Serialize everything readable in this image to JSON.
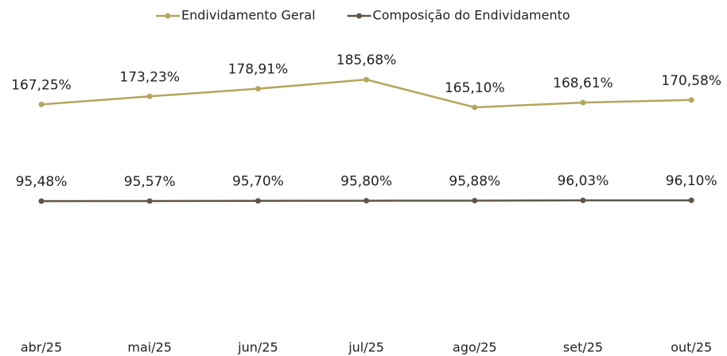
{
  "chart_data": {
    "type": "line",
    "categories": [
      "abr/25",
      "mai/25",
      "jun/25",
      "jul/25",
      "ago/25",
      "set/25",
      "out/25"
    ],
    "series": [
      {
        "name": "Endividamento Geral",
        "color": "#b5a55e",
        "values": [
          167.25,
          173.23,
          178.91,
          185.68,
          165.1,
          168.61,
          170.58
        ],
        "value_labels": [
          "167,25%",
          "173,23%",
          "178,91%",
          "185,68%",
          "165,10%",
          "168,61%",
          "170,58%"
        ]
      },
      {
        "name": "Composição do Endividamento",
        "color": "#5e564b",
        "values": [
          95.48,
          95.57,
          95.7,
          95.8,
          95.88,
          96.03,
          96.1
        ],
        "value_labels": [
          "95,48%",
          "95,57%",
          "95,70%",
          "95,80%",
          "95,88%",
          "96,03%",
          "96,10%"
        ]
      }
    ],
    "ylim": [
      0,
      220
    ],
    "legend": "top"
  }
}
